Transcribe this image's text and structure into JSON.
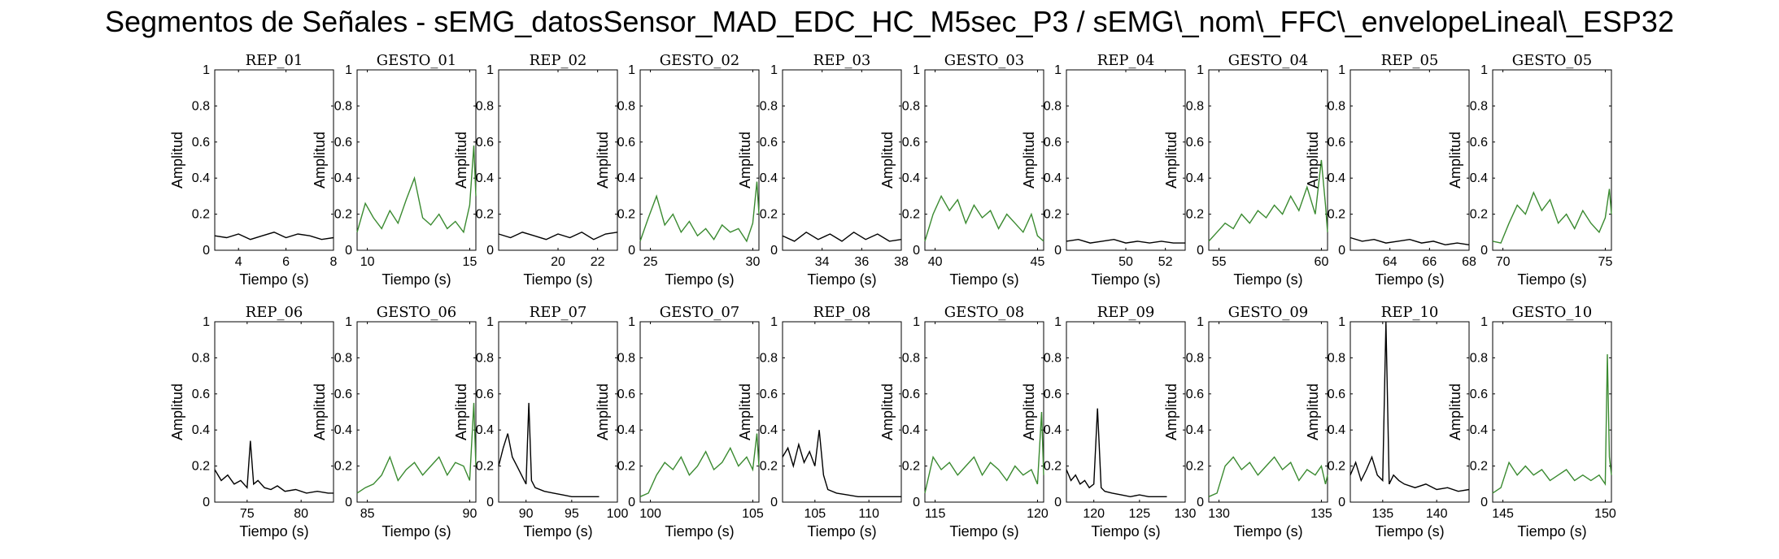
{
  "figure": {
    "title": "Segmentos de Señales - sEMG_datosSensor_MAD_EDC_HC_M5sec_P3 / sEMG\\_nom\\_FFC\\_envelopeLineal\\_ESP32"
  },
  "colors": {
    "rep": "#000000",
    "gesto": "#3a8a30",
    "axes": "#000000",
    "background": "#ffffff"
  },
  "chart_data": [
    {
      "type": "line",
      "title": "REP_01",
      "xlabel": "Tiempo (s)",
      "ylabel": "Amplitud",
      "xlim": [
        3,
        8
      ],
      "ylim": [
        0,
        1
      ],
      "xticks": [
        4,
        6,
        8
      ],
      "yticks": [
        0,
        0.2,
        0.4,
        0.6,
        0.8,
        1
      ],
      "color": "#000000",
      "x": [
        3,
        3.5,
        4,
        4.5,
        5,
        5.5,
        6,
        6.5,
        7,
        7.5,
        8
      ],
      "y": [
        0.08,
        0.07,
        0.09,
        0.06,
        0.08,
        0.1,
        0.07,
        0.09,
        0.08,
        0.06,
        0.07
      ]
    },
    {
      "type": "line",
      "title": "GESTO_01",
      "xlabel": "Tiempo (s)",
      "ylabel": "Amplitud",
      "xlim": [
        9.5,
        15.3
      ],
      "ylim": [
        0,
        1
      ],
      "xticks": [
        10,
        15
      ],
      "yticks": [
        0,
        0.2,
        0.4,
        0.6,
        0.8,
        1
      ],
      "color": "#3a8a30",
      "x": [
        9.5,
        9.9,
        10.3,
        10.7,
        11.1,
        11.5,
        11.9,
        12.3,
        12.7,
        13.1,
        13.5,
        13.9,
        14.3,
        14.7,
        15,
        15.2,
        15.3
      ],
      "y": [
        0.1,
        0.26,
        0.18,
        0.12,
        0.22,
        0.15,
        0.28,
        0.4,
        0.18,
        0.14,
        0.2,
        0.12,
        0.16,
        0.1,
        0.25,
        0.58,
        0.3
      ]
    },
    {
      "type": "line",
      "title": "REP_02",
      "xlabel": "Tiempo (s)",
      "ylabel": "Amplitud",
      "xlim": [
        17,
        23
      ],
      "ylim": [
        0,
        1
      ],
      "xticks": [
        20,
        22
      ],
      "yticks": [
        0,
        0.2,
        0.4,
        0.6,
        0.8,
        1
      ],
      "color": "#000000",
      "x": [
        17,
        17.6,
        18.2,
        18.8,
        19.4,
        20,
        20.6,
        21.2,
        21.8,
        22.4,
        23
      ],
      "y": [
        0.09,
        0.07,
        0.1,
        0.08,
        0.06,
        0.09,
        0.07,
        0.1,
        0.06,
        0.09,
        0.1
      ]
    },
    {
      "type": "line",
      "title": "GESTO_02",
      "xlabel": "Tiempo (s)",
      "ylabel": "Amplitud",
      "xlim": [
        24.5,
        30.3
      ],
      "ylim": [
        0,
        1
      ],
      "xticks": [
        25,
        30
      ],
      "yticks": [
        0,
        0.2,
        0.4,
        0.6,
        0.8,
        1
      ],
      "color": "#3a8a30",
      "x": [
        24.5,
        24.9,
        25.3,
        25.7,
        26.1,
        26.5,
        26.9,
        27.3,
        27.7,
        28.1,
        28.5,
        28.9,
        29.3,
        29.7,
        30,
        30.2,
        30.3
      ],
      "y": [
        0.05,
        0.18,
        0.3,
        0.14,
        0.2,
        0.1,
        0.16,
        0.08,
        0.12,
        0.06,
        0.14,
        0.1,
        0.12,
        0.05,
        0.15,
        0.38,
        0.2
      ]
    },
    {
      "type": "line",
      "title": "REP_03",
      "xlabel": "Tiempo (s)",
      "ylabel": "Amplitud",
      "xlim": [
        32,
        38
      ],
      "ylim": [
        0,
        1
      ],
      "xticks": [
        34,
        36,
        38
      ],
      "yticks": [
        0,
        0.2,
        0.4,
        0.6,
        0.8,
        1
      ],
      "color": "#000000",
      "x": [
        32,
        32.6,
        33.2,
        33.8,
        34.4,
        35,
        35.6,
        36.2,
        36.8,
        37.4,
        38
      ],
      "y": [
        0.08,
        0.05,
        0.1,
        0.06,
        0.09,
        0.05,
        0.1,
        0.06,
        0.09,
        0.05,
        0.06
      ]
    },
    {
      "type": "line",
      "title": "GESTO_03",
      "xlabel": "Tiempo (s)",
      "ylabel": "Amplitud",
      "xlim": [
        39.5,
        45.3
      ],
      "ylim": [
        0,
        1
      ],
      "xticks": [
        40,
        45
      ],
      "yticks": [
        0,
        0.2,
        0.4,
        0.6,
        0.8,
        1
      ],
      "color": "#3a8a30",
      "x": [
        39.5,
        39.9,
        40.3,
        40.7,
        41.1,
        41.5,
        41.9,
        42.3,
        42.7,
        43.1,
        43.5,
        43.9,
        44.3,
        44.7,
        45,
        45.3
      ],
      "y": [
        0.05,
        0.2,
        0.3,
        0.22,
        0.28,
        0.15,
        0.25,
        0.18,
        0.22,
        0.12,
        0.2,
        0.15,
        0.1,
        0.2,
        0.08,
        0.05
      ]
    },
    {
      "type": "line",
      "title": "REP_04",
      "xlabel": "Tiempo (s)",
      "ylabel": "Amplitud",
      "xlim": [
        47,
        53
      ],
      "ylim": [
        0,
        1
      ],
      "xticks": [
        50,
        52
      ],
      "yticks": [
        0,
        0.2,
        0.4,
        0.6,
        0.8,
        1
      ],
      "color": "#000000",
      "x": [
        47,
        47.6,
        48.2,
        48.8,
        49.4,
        50,
        50.6,
        51.2,
        51.8,
        52.4,
        53
      ],
      "y": [
        0.05,
        0.06,
        0.04,
        0.05,
        0.06,
        0.04,
        0.05,
        0.04,
        0.05,
        0.04,
        0.04
      ]
    },
    {
      "type": "line",
      "title": "GESTO_04",
      "xlabel": "Tiempo (s)",
      "ylabel": "Amplitud",
      "xlim": [
        54.5,
        60.3
      ],
      "ylim": [
        0,
        1
      ],
      "xticks": [
        55,
        60
      ],
      "yticks": [
        0,
        0.2,
        0.4,
        0.6,
        0.8,
        1
      ],
      "color": "#3a8a30",
      "x": [
        54.5,
        54.9,
        55.3,
        55.7,
        56.1,
        56.5,
        56.9,
        57.3,
        57.7,
        58.1,
        58.5,
        58.9,
        59.3,
        59.7,
        60,
        60.2,
        60.3
      ],
      "y": [
        0.05,
        0.1,
        0.15,
        0.12,
        0.2,
        0.15,
        0.22,
        0.18,
        0.25,
        0.2,
        0.3,
        0.22,
        0.35,
        0.2,
        0.5,
        0.25,
        0.1
      ]
    },
    {
      "type": "line",
      "title": "REP_05",
      "xlabel": "Tiempo (s)",
      "ylabel": "Amplitud",
      "xlim": [
        62,
        68
      ],
      "ylim": [
        0,
        1
      ],
      "xticks": [
        64,
        66,
        68
      ],
      "yticks": [
        0,
        0.2,
        0.4,
        0.6,
        0.8,
        1
      ],
      "color": "#000000",
      "x": [
        62,
        62.6,
        63.2,
        63.8,
        64.4,
        65,
        65.6,
        66.2,
        66.8,
        67.4,
        68
      ],
      "y": [
        0.07,
        0.05,
        0.06,
        0.04,
        0.05,
        0.06,
        0.04,
        0.05,
        0.03,
        0.04,
        0.03
      ]
    },
    {
      "type": "line",
      "title": "GESTO_05",
      "xlabel": "Tiempo (s)",
      "ylabel": "Amplitud",
      "xlim": [
        69.5,
        75.3
      ],
      "ylim": [
        0,
        1
      ],
      "xticks": [
        70,
        75
      ],
      "yticks": [
        0,
        0.2,
        0.4,
        0.6,
        0.8,
        1
      ],
      "color": "#3a8a30",
      "x": [
        69.5,
        69.9,
        70.3,
        70.7,
        71.1,
        71.5,
        71.9,
        72.3,
        72.7,
        73.1,
        73.5,
        73.9,
        74.3,
        74.7,
        75,
        75.2,
        75.3
      ],
      "y": [
        0.05,
        0.04,
        0.15,
        0.25,
        0.2,
        0.32,
        0.22,
        0.28,
        0.15,
        0.2,
        0.12,
        0.22,
        0.15,
        0.1,
        0.18,
        0.34,
        0.2
      ]
    },
    {
      "type": "line",
      "title": "REP_06",
      "xlabel": "Tiempo (s)",
      "ylabel": "Amplitud",
      "xlim": [
        72,
        83
      ],
      "ylim": [
        0,
        1
      ],
      "xticks": [
        75,
        80
      ],
      "yticks": [
        0,
        0.2,
        0.4,
        0.6,
        0.8,
        1
      ],
      "color": "#000000",
      "x": [
        72,
        72.6,
        73.2,
        73.8,
        74.4,
        75,
        75.3,
        75.6,
        76,
        76.6,
        77.2,
        77.8,
        78.5,
        79.5,
        80.5,
        81.5,
        82.5,
        83
      ],
      "y": [
        0.18,
        0.12,
        0.15,
        0.1,
        0.12,
        0.08,
        0.34,
        0.1,
        0.12,
        0.08,
        0.07,
        0.09,
        0.06,
        0.07,
        0.05,
        0.06,
        0.05,
        0.05
      ]
    },
    {
      "type": "line",
      "title": "GESTO_06",
      "xlabel": "Tiempo (s)",
      "ylabel": "Amplitud",
      "xlim": [
        84.5,
        90.3
      ],
      "ylim": [
        0,
        1
      ],
      "xticks": [
        85,
        90
      ],
      "yticks": [
        0,
        0.2,
        0.4,
        0.6,
        0.8,
        1
      ],
      "color": "#3a8a30",
      "x": [
        84.5,
        84.9,
        85.3,
        85.7,
        86.1,
        86.5,
        86.9,
        87.3,
        87.7,
        88.1,
        88.5,
        88.9,
        89.3,
        89.7,
        90,
        90.2,
        90.3
      ],
      "y": [
        0.05,
        0.08,
        0.1,
        0.15,
        0.25,
        0.12,
        0.18,
        0.22,
        0.15,
        0.2,
        0.25,
        0.15,
        0.22,
        0.2,
        0.12,
        0.55,
        0.2
      ]
    },
    {
      "type": "line",
      "title": "REP_07",
      "xlabel": "Tiempo (s)",
      "ylabel": "Amplitud",
      "xlim": [
        87,
        100
      ],
      "ylim": [
        0,
        1
      ],
      "xticks": [
        90,
        95,
        100
      ],
      "yticks": [
        0,
        0.2,
        0.4,
        0.6,
        0.8,
        1
      ],
      "color": "#000000",
      "x": [
        87,
        87.5,
        88,
        88.5,
        89,
        89.5,
        90,
        90.3,
        90.6,
        91,
        92,
        93,
        94,
        95,
        96,
        97,
        98
      ],
      "y": [
        0.2,
        0.3,
        0.38,
        0.25,
        0.2,
        0.15,
        0.1,
        0.55,
        0.12,
        0.08,
        0.06,
        0.05,
        0.04,
        0.03,
        0.03,
        0.03,
        0.03
      ]
    },
    {
      "type": "line",
      "title": "GESTO_07",
      "xlabel": "Tiempo (s)",
      "ylabel": "Amplitud",
      "xlim": [
        99.5,
        105.3
      ],
      "ylim": [
        0,
        1
      ],
      "xticks": [
        100,
        105
      ],
      "yticks": [
        0,
        0.2,
        0.4,
        0.6,
        0.8,
        1
      ],
      "color": "#3a8a30",
      "x": [
        99.5,
        99.9,
        100.3,
        100.7,
        101.1,
        101.5,
        101.9,
        102.3,
        102.7,
        103.1,
        103.5,
        103.9,
        104.3,
        104.7,
        105,
        105.2,
        105.3
      ],
      "y": [
        0.03,
        0.05,
        0.15,
        0.22,
        0.18,
        0.25,
        0.15,
        0.2,
        0.28,
        0.18,
        0.22,
        0.3,
        0.2,
        0.25,
        0.18,
        0.38,
        0.2
      ]
    },
    {
      "type": "line",
      "title": "REP_08",
      "xlabel": "Tiempo (s)",
      "ylabel": "Amplitud",
      "xlim": [
        102,
        113
      ],
      "ylim": [
        0,
        1
      ],
      "xticks": [
        105,
        110
      ],
      "yticks": [
        0,
        0.2,
        0.4,
        0.6,
        0.8,
        1
      ],
      "color": "#000000",
      "x": [
        102,
        102.5,
        103,
        103.5,
        104,
        104.5,
        105,
        105.4,
        105.8,
        106.2,
        107,
        108,
        109,
        110,
        111,
        112,
        113
      ],
      "y": [
        0.25,
        0.3,
        0.2,
        0.32,
        0.22,
        0.28,
        0.2,
        0.4,
        0.15,
        0.07,
        0.05,
        0.04,
        0.03,
        0.03,
        0.03,
        0.03,
        0.03
      ]
    },
    {
      "type": "line",
      "title": "GESTO_08",
      "xlabel": "Tiempo (s)",
      "ylabel": "Amplitud",
      "xlim": [
        114.5,
        120.3
      ],
      "ylim": [
        0,
        1
      ],
      "xticks": [
        115,
        120
      ],
      "yticks": [
        0,
        0.2,
        0.4,
        0.6,
        0.8,
        1
      ],
      "color": "#3a8a30",
      "x": [
        114.5,
        114.9,
        115.3,
        115.7,
        116.1,
        116.5,
        116.9,
        117.3,
        117.7,
        118.1,
        118.5,
        118.9,
        119.3,
        119.7,
        120,
        120.2,
        120.3
      ],
      "y": [
        0.05,
        0.25,
        0.18,
        0.22,
        0.15,
        0.2,
        0.25,
        0.15,
        0.22,
        0.18,
        0.12,
        0.2,
        0.15,
        0.18,
        0.1,
        0.5,
        0.15
      ]
    },
    {
      "type": "line",
      "title": "REP_09",
      "xlabel": "Tiempo (s)",
      "ylabel": "Amplitud",
      "xlim": [
        117,
        130
      ],
      "ylim": [
        0,
        1
      ],
      "xticks": [
        120,
        125,
        130
      ],
      "yticks": [
        0,
        0.2,
        0.4,
        0.6,
        0.8,
        1
      ],
      "color": "#000000",
      "x": [
        117,
        117.5,
        118,
        118.5,
        119,
        119.5,
        120,
        120.4,
        120.8,
        121.2,
        122,
        123,
        124,
        125,
        126,
        127,
        128
      ],
      "y": [
        0.18,
        0.12,
        0.15,
        0.1,
        0.12,
        0.08,
        0.1,
        0.52,
        0.08,
        0.06,
        0.05,
        0.04,
        0.03,
        0.04,
        0.03,
        0.03,
        0.03
      ]
    },
    {
      "type": "line",
      "title": "GESTO_09",
      "xlabel": "Tiempo (s)",
      "ylabel": "Amplitud",
      "xlim": [
        129.5,
        135.3
      ],
      "ylim": [
        0,
        1
      ],
      "xticks": [
        130,
        135
      ],
      "yticks": [
        0,
        0.2,
        0.4,
        0.6,
        0.8,
        1
      ],
      "color": "#3a8a30",
      "x": [
        129.5,
        129.9,
        130.3,
        130.7,
        131.1,
        131.5,
        131.9,
        132.3,
        132.7,
        133.1,
        133.5,
        133.9,
        134.3,
        134.7,
        135,
        135.2,
        135.3
      ],
      "y": [
        0.03,
        0.05,
        0.2,
        0.25,
        0.18,
        0.22,
        0.15,
        0.2,
        0.25,
        0.18,
        0.22,
        0.12,
        0.18,
        0.15,
        0.2,
        0.1,
        0.15
      ]
    },
    {
      "type": "line",
      "title": "REP_10",
      "xlabel": "Tiempo (s)",
      "ylabel": "Amplitud",
      "xlim": [
        132,
        143
      ],
      "ylim": [
        0,
        1
      ],
      "xticks": [
        135,
        140
      ],
      "yticks": [
        0,
        0.2,
        0.4,
        0.6,
        0.8,
        1
      ],
      "color": "#000000",
      "x": [
        132,
        132.5,
        133,
        133.5,
        134,
        134.5,
        135,
        135.3,
        135.6,
        136,
        136.5,
        137,
        138,
        139,
        140,
        141,
        142,
        143
      ],
      "y": [
        0.15,
        0.22,
        0.12,
        0.18,
        0.25,
        0.15,
        0.12,
        1.0,
        0.1,
        0.15,
        0.12,
        0.1,
        0.08,
        0.1,
        0.07,
        0.08,
        0.06,
        0.07
      ]
    },
    {
      "type": "line",
      "title": "GESTO_10",
      "xlabel": "Tiempo (s)",
      "ylabel": "Amplitud",
      "xlim": [
        144.5,
        150.3
      ],
      "ylim": [
        0,
        1
      ],
      "xticks": [
        145,
        150
      ],
      "yticks": [
        0,
        0.2,
        0.4,
        0.6,
        0.8,
        1
      ],
      "color": "#3a8a30",
      "x": [
        144.5,
        144.9,
        145.3,
        145.7,
        146.1,
        146.5,
        146.9,
        147.3,
        147.7,
        148.1,
        148.5,
        148.9,
        149.3,
        149.7,
        150,
        150.1,
        150.2,
        150.3
      ],
      "y": [
        0.05,
        0.08,
        0.22,
        0.15,
        0.2,
        0.15,
        0.18,
        0.12,
        0.15,
        0.18,
        0.12,
        0.15,
        0.12,
        0.15,
        0.1,
        0.82,
        0.25,
        0.15
      ]
    }
  ]
}
